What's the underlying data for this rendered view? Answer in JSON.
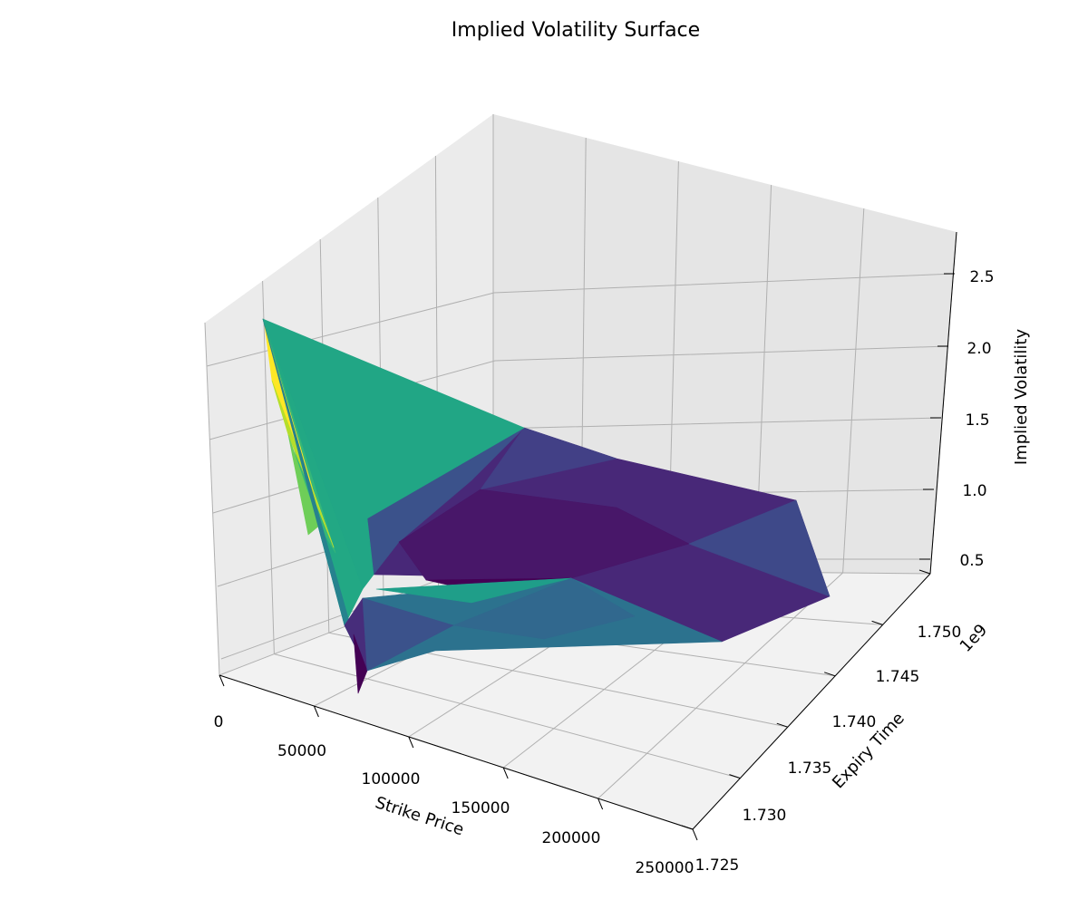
{
  "chart_data": {
    "type": "surface3d",
    "title": "Implied Volatility Surface",
    "xlabel": "Strike Price",
    "ylabel": "Expiry Time",
    "zlabel": "Implied Volatility",
    "x_ticks": [
      "0",
      "50000",
      "100000",
      "150000",
      "200000",
      "250000"
    ],
    "y_ticks": [
      "1.725",
      "1.730",
      "1.735",
      "1.740",
      "1.745",
      "1.750"
    ],
    "z_ticks": [
      "0.5",
      "1.0",
      "1.5",
      "2.0",
      "2.5"
    ],
    "y_offset_label": "1e9",
    "colormap": "viridis",
    "xlim": [
      0,
      250000
    ],
    "ylim": [
      1725000000.0,
      1752000000.0
    ],
    "zlim": [
      0.3,
      2.7
    ],
    "grid": true,
    "surface_points": [
      {
        "strike": 0,
        "expiry": 1752500000.0,
        "iv": 2.2
      },
      {
        "strike": 0,
        "expiry": 1726000000.0,
        "iv": 2.4
      },
      {
        "strike": 90000,
        "expiry": 1752500000.0,
        "iv": 1.2
      },
      {
        "strike": 70000,
        "expiry": 1732000000.0,
        "iv": 0.3
      },
      {
        "strike": 80000,
        "expiry": 1729000000.0,
        "iv": 0.45
      },
      {
        "strike": 145000,
        "expiry": 1745000000.0,
        "iv": 0.95
      },
      {
        "strike": 235000,
        "expiry": 1748000000.0,
        "iv": 1.05
      },
      {
        "strike": 250000,
        "expiry": 1744000000.0,
        "iv": 0.75
      },
      {
        "strike": 215000,
        "expiry": 1729000000.0,
        "iv": 0.6
      },
      {
        "strike": 95000,
        "expiry": 1731000000.0,
        "iv": 0.5
      },
      {
        "strike": 125000,
        "expiry": 1745000000.0,
        "iv": 0.95
      }
    ]
  }
}
